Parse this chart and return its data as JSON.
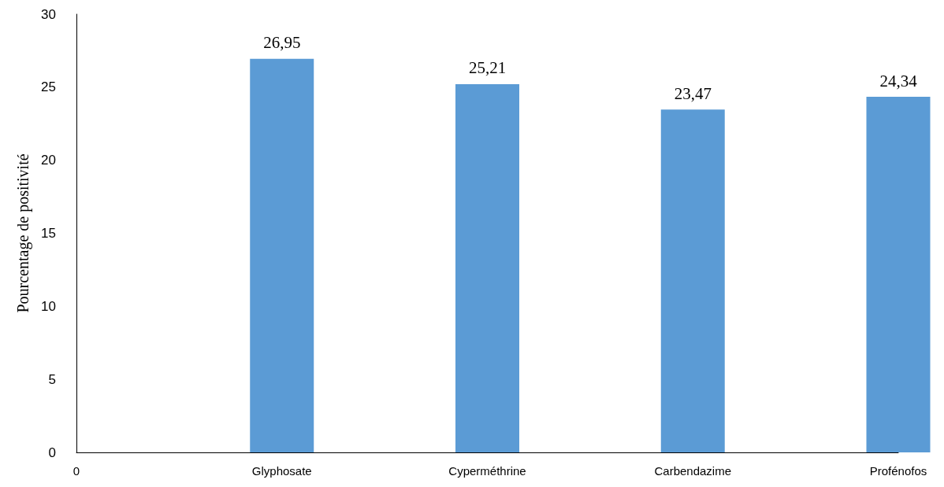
{
  "chart_data": {
    "type": "bar",
    "ylabel": "Pourcentage de positivité",
    "categories": [
      "0",
      "Glyphosate",
      "Cyperméthrine",
      "Carbendazime",
      "Profénofos"
    ],
    "values": [
      null,
      26.95,
      25.21,
      23.47,
      24.34
    ],
    "value_labels": [
      null,
      "26,95",
      "25,21",
      "23,47",
      "24,34"
    ],
    "color": "#5b9bd5",
    "ylim": [
      0,
      30
    ],
    "yticks": [
      0,
      5,
      10,
      15,
      20,
      25,
      30
    ],
    "grid": false
  }
}
